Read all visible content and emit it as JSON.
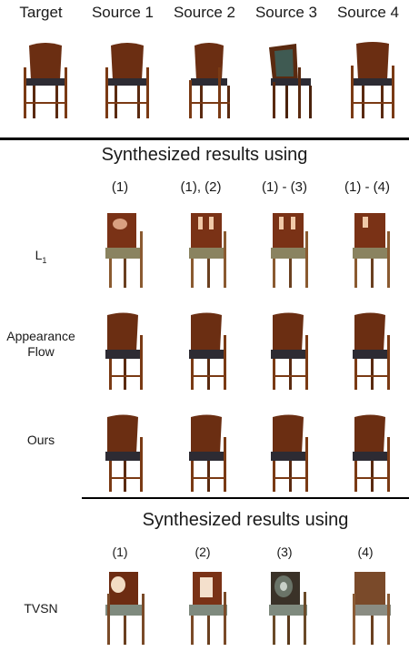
{
  "top_row": {
    "headers": [
      "Target",
      "Source 1",
      "Source 2",
      "Source 3",
      "Source 4"
    ]
  },
  "section1": {
    "title": "Synthesized results using",
    "columns": [
      "(1)",
      "(1), (2)",
      "(1) - (3)",
      "(1) - (4)"
    ],
    "rows": [
      {
        "label_lines": [
          "L",
          "1"
        ]
      },
      {
        "label_lines": [
          "Appearance",
          "Flow"
        ]
      },
      {
        "label_lines": [
          "Ours"
        ]
      }
    ]
  },
  "section2": {
    "title": "Synthesized results using",
    "columns": [
      "(1)",
      "(2)",
      "(3)",
      "(4)"
    ],
    "row_label": "TVSN"
  }
}
